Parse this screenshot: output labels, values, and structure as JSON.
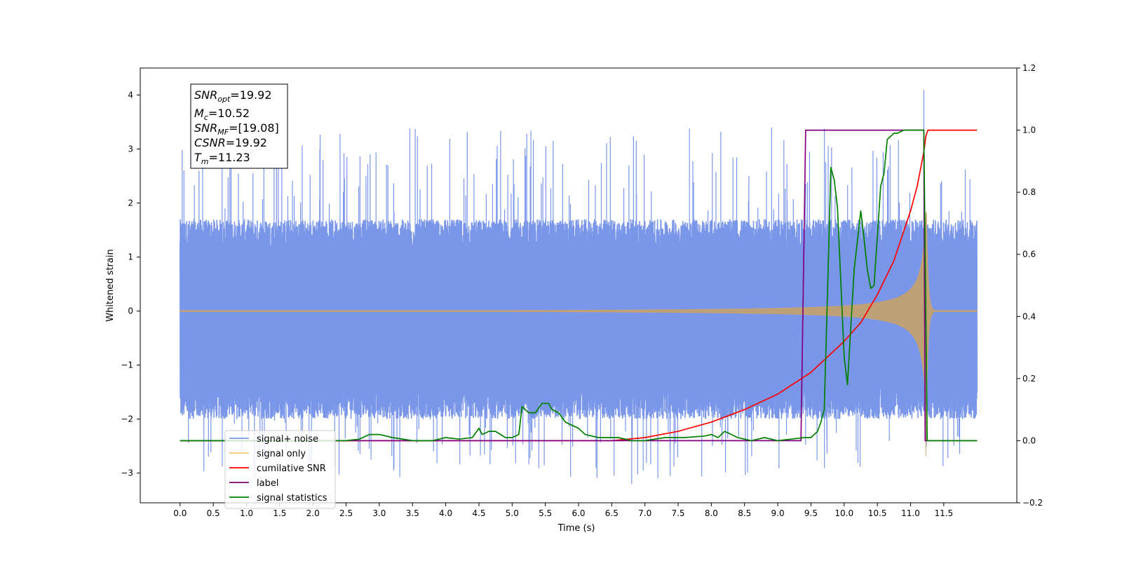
{
  "chart_data": {
    "type": "line",
    "xlabel": "Time (s)",
    "ylabel": "Whitened strain",
    "xlim": [
      -0.6,
      12.6
    ],
    "ylim": [
      -3.55,
      4.5
    ],
    "y2lim": [
      -0.2,
      1.2
    ],
    "xticks": [
      "0.0",
      "0.5",
      "1.0",
      "1.5",
      "2.0",
      "2.5",
      "3.0",
      "3.5",
      "4.0",
      "4.5",
      "5.0",
      "5.5",
      "6.0",
      "6.5",
      "7.0",
      "7.5",
      "8.0",
      "8.5",
      "9.0",
      "9.5",
      "10.0",
      "10.5",
      "11.0",
      "11.5"
    ],
    "yticks": [
      "−3",
      "−2",
      "−1",
      "0",
      "1",
      "2",
      "3",
      "4"
    ],
    "y2ticks": [
      "−0.2",
      "0.0",
      "0.2",
      "0.4",
      "0.6",
      "0.8",
      "1.0",
      "1.2"
    ],
    "legend_position": "lower left",
    "legend": [
      {
        "label": "signal+ noise",
        "color": "#7a96e8"
      },
      {
        "label": "signal only",
        "color": "#f5c87a"
      },
      {
        "label": "cumilative SNR",
        "color": "#ff0000"
      },
      {
        "label": "label",
        "color": "#800080"
      },
      {
        "label": "signal statistics",
        "color": "#008000"
      }
    ],
    "annotation": {
      "snr_opt": "=19.92",
      "mc": "=10.52",
      "snr_mf": "=[19.08]",
      "csnr": "=19.92",
      "tm": "=11.23"
    },
    "noise": {
      "t_start": 0.0,
      "t_end": 12.0,
      "envelope_low": -1.7,
      "envelope_high": 1.4,
      "max": 4.1,
      "min": -3.2
    },
    "signal_only": {
      "t_start": 0.0,
      "t_merger": 11.23,
      "t_end": 12.0,
      "peak_amplitude": 2.7
    },
    "series": [
      {
        "name": "cumilative SNR",
        "axis": "right",
        "x": [
          0.0,
          6.5,
          7.0,
          7.5,
          8.0,
          8.5,
          9.0,
          9.5,
          10.0,
          10.25,
          10.5,
          10.75,
          11.0,
          11.1,
          11.2,
          11.23,
          11.26,
          12.0
        ],
        "y": [
          0.0,
          0.0,
          0.01,
          0.03,
          0.06,
          0.1,
          0.15,
          0.22,
          0.32,
          0.38,
          0.47,
          0.58,
          0.74,
          0.82,
          0.93,
          0.98,
          1.0,
          1.0
        ]
      },
      {
        "name": "label",
        "axis": "right",
        "x": [
          0.0,
          9.35,
          9.42,
          11.2,
          11.22,
          11.25,
          12.0
        ],
        "y": [
          0.0,
          0.0,
          1.0,
          1.0,
          0.0,
          0.0,
          0.0
        ]
      },
      {
        "name": "signal statistics",
        "axis": "right",
        "x": [
          0.0,
          2.5,
          2.7,
          2.85,
          3.0,
          3.2,
          3.5,
          3.8,
          4.0,
          4.2,
          4.4,
          4.5,
          4.55,
          4.65,
          4.75,
          4.9,
          5.0,
          5.1,
          5.15,
          5.25,
          5.35,
          5.45,
          5.55,
          5.6,
          5.7,
          5.8,
          5.9,
          6.0,
          6.1,
          6.3,
          6.6,
          6.8,
          7.0,
          7.3,
          7.6,
          7.9,
          8.0,
          8.1,
          8.2,
          8.4,
          8.6,
          8.8,
          9.0,
          9.2,
          9.4,
          9.5,
          9.6,
          9.65,
          9.7,
          9.75,
          9.8,
          9.85,
          9.9,
          10.0,
          10.05,
          10.15,
          10.25,
          10.3,
          10.35,
          10.4,
          10.45,
          10.55,
          10.6,
          10.65,
          10.7,
          10.75,
          10.8,
          10.9,
          11.0,
          11.1,
          11.2,
          11.25,
          11.3,
          12.0
        ],
        "y": [
          0.0,
          0.0,
          0.005,
          0.02,
          0.02,
          0.01,
          0.0,
          0.0,
          0.01,
          0.005,
          0.01,
          0.04,
          0.02,
          0.03,
          0.03,
          0.01,
          0.01,
          0.02,
          0.11,
          0.09,
          0.09,
          0.12,
          0.12,
          0.1,
          0.09,
          0.06,
          0.05,
          0.04,
          0.02,
          0.01,
          0.01,
          0.0,
          0.0,
          0.01,
          0.01,
          0.015,
          0.02,
          0.01,
          0.03,
          0.01,
          0.0,
          0.01,
          0.0,
          0.005,
          0.01,
          0.01,
          0.03,
          0.06,
          0.1,
          0.48,
          0.88,
          0.84,
          0.75,
          0.27,
          0.18,
          0.55,
          0.74,
          0.65,
          0.55,
          0.49,
          0.5,
          0.82,
          0.86,
          0.97,
          0.98,
          0.99,
          0.99,
          1.0,
          1.0,
          1.0,
          1.0,
          0.0,
          0.0,
          0.0
        ]
      }
    ]
  }
}
